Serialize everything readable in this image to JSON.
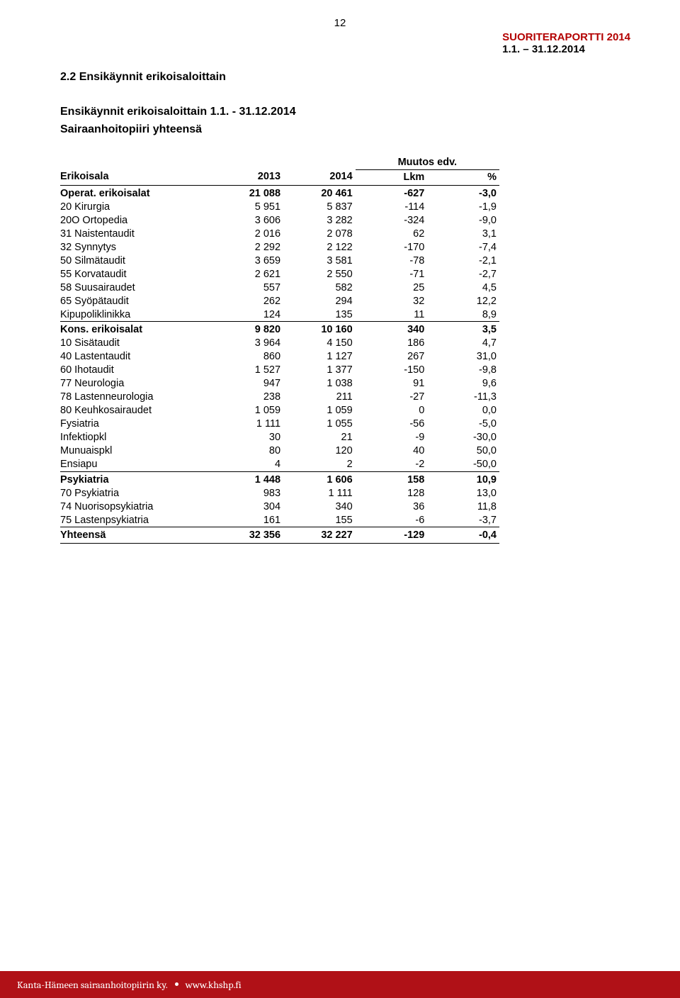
{
  "page_number": "12",
  "report": {
    "title": "SUORITERAPORTTI 2014",
    "dates": "1.1. – 31.12.2014"
  },
  "section_title": "2.2  Ensikäynnit erikoisaloittain",
  "subtitle_line1": "Ensikäynnit erikoisaloittain 1.1. - 31.12.2014",
  "subtitle_line2": "Sairaanhoitopiiri yhteensä",
  "muutos_label": "Muutos edv.",
  "headers": {
    "c0": "Erikoisala",
    "c1": "2013",
    "c2": "2014",
    "c3": "Lkm",
    "c4": "%"
  },
  "groups": [
    {
      "header": {
        "c0": "Operat. erikoisalat",
        "c1": "21 088",
        "c2": "20 461",
        "c3": "-627",
        "c4": "-3,0"
      },
      "rows": [
        {
          "c0": "20 Kirurgia",
          "c1": "5 951",
          "c2": "5 837",
          "c3": "-114",
          "c4": "-1,9"
        },
        {
          "c0": "20O Ortopedia",
          "c1": "3 606",
          "c2": "3 282",
          "c3": "-324",
          "c4": "-9,0"
        },
        {
          "c0": "31 Naistentaudit",
          "c1": "2 016",
          "c2": "2 078",
          "c3": "62",
          "c4": "3,1"
        },
        {
          "c0": "32 Synnytys",
          "c1": "2 292",
          "c2": "2 122",
          "c3": "-170",
          "c4": "-7,4"
        },
        {
          "c0": "50 Silmätaudit",
          "c1": "3 659",
          "c2": "3 581",
          "c3": "-78",
          "c4": "-2,1"
        },
        {
          "c0": "55 Korvataudit",
          "c1": "2 621",
          "c2": "2 550",
          "c3": "-71",
          "c4": "-2,7"
        },
        {
          "c0": "58 Suusairaudet",
          "c1": "557",
          "c2": "582",
          "c3": "25",
          "c4": "4,5"
        },
        {
          "c0": "65 Syöpätaudit",
          "c1": "262",
          "c2": "294",
          "c3": "32",
          "c4": "12,2"
        },
        {
          "c0": "Kipupoliklinikka",
          "c1": "124",
          "c2": "135",
          "c3": "11",
          "c4": "8,9"
        }
      ]
    },
    {
      "header": {
        "c0": "Kons. erikoisalat",
        "c1": "9 820",
        "c2": "10 160",
        "c3": "340",
        "c4": "3,5"
      },
      "rows": [
        {
          "c0": "10 Sisätaudit",
          "c1": "3 964",
          "c2": "4 150",
          "c3": "186",
          "c4": "4,7"
        },
        {
          "c0": "40 Lastentaudit",
          "c1": "860",
          "c2": "1 127",
          "c3": "267",
          "c4": "31,0"
        },
        {
          "c0": "60 Ihotaudit",
          "c1": "1 527",
          "c2": "1 377",
          "c3": "-150",
          "c4": "-9,8"
        },
        {
          "c0": "77 Neurologia",
          "c1": "947",
          "c2": "1 038",
          "c3": "91",
          "c4": "9,6"
        },
        {
          "c0": "78 Lastenneurologia",
          "c1": "238",
          "c2": "211",
          "c3": "-27",
          "c4": "-11,3"
        },
        {
          "c0": "80 Keuhkosairaudet",
          "c1": "1 059",
          "c2": "1 059",
          "c3": "0",
          "c4": "0,0"
        },
        {
          "c0": "Fysiatria",
          "c1": "1 111",
          "c2": "1 055",
          "c3": "-56",
          "c4": "-5,0"
        },
        {
          "c0": "Infektiopkl",
          "c1": "30",
          "c2": "21",
          "c3": "-9",
          "c4": "-30,0"
        },
        {
          "c0": "Munuaispkl",
          "c1": "80",
          "c2": "120",
          "c3": "40",
          "c4": "50,0"
        },
        {
          "c0": "Ensiapu",
          "c1": "4",
          "c2": "2",
          "c3": "-2",
          "c4": "-50,0"
        }
      ]
    },
    {
      "header": {
        "c0": "Psykiatria",
        "c1": "1 448",
        "c2": "1 606",
        "c3": "158",
        "c4": "10,9"
      },
      "rows": [
        {
          "c0": "70 Psykiatria",
          "c1": "983",
          "c2": "1 111",
          "c3": "128",
          "c4": "13,0"
        },
        {
          "c0": "74 Nuorisopsykiatria",
          "c1": "304",
          "c2": "340",
          "c3": "36",
          "c4": "11,8"
        },
        {
          "c0": "75 Lastenpsykiatria",
          "c1": "161",
          "c2": "155",
          "c3": "-6",
          "c4": "-3,7"
        }
      ]
    }
  ],
  "total": {
    "c0": "Yhteensä",
    "c1": "32 356",
    "c2": "32 227",
    "c3": "-129",
    "c4": "-0,4"
  },
  "footer": {
    "org": "Kanta-Hämeen sairaanhoitopiirin ky.",
    "url": "www.khshp.fi"
  },
  "colors": {
    "brand_red": "#b01117",
    "header_red": "#b30000",
    "text": "#000000",
    "bg": "#ffffff"
  }
}
